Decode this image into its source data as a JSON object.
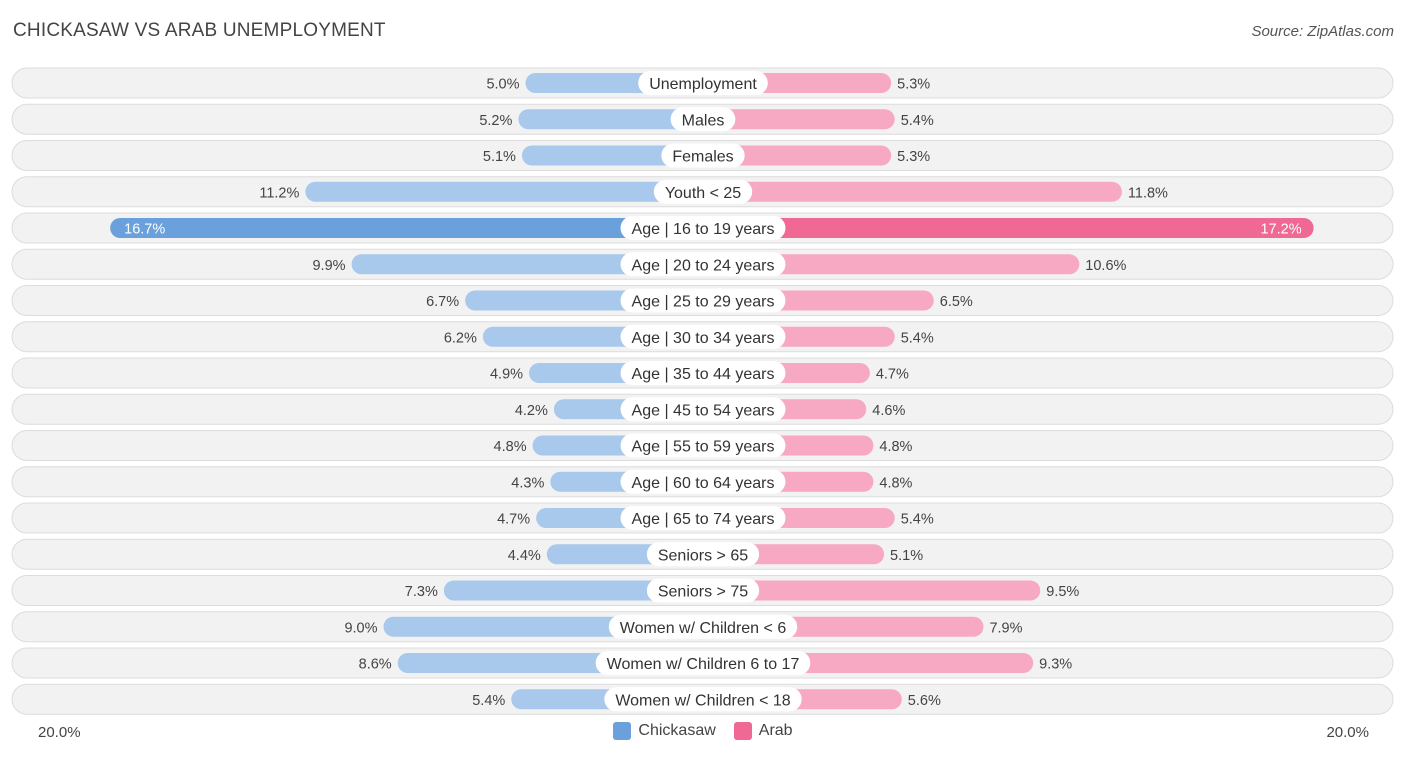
{
  "title": "CHICKASAW VS ARAB UNEMPLOYMENT",
  "source": "Source: ZipAtlas.com",
  "colors": {
    "left_light": "#a8c8ec",
    "left_strong": "#6aa0dc",
    "right_light": "#f7a8c2",
    "right_strong": "#f06894",
    "row_bg": "#f2f2f2",
    "row_border": "#dcdcdc"
  },
  "legend": [
    {
      "label": "Chickasaw",
      "color": "#6aa0dc"
    },
    {
      "label": "Arab",
      "color": "#f06894"
    }
  ],
  "axis": {
    "left_label": "20.0%",
    "right_label": "20.0%"
  },
  "chart_data": {
    "type": "bar",
    "orientation": "horizontal-diverging",
    "title": "CHICKASAW VS ARAB UNEMPLOYMENT",
    "xlim": [
      0,
      20
    ],
    "series_names": [
      "Chickasaw",
      "Arab"
    ],
    "categories": [
      "Unemployment",
      "Males",
      "Females",
      "Youth < 25",
      "Age | 16 to 19 years",
      "Age | 20 to 24 years",
      "Age | 25 to 29 years",
      "Age | 30 to 34 years",
      "Age | 35 to 44 years",
      "Age | 45 to 54 years",
      "Age | 55 to 59 years",
      "Age | 60 to 64 years",
      "Age | 65 to 74 years",
      "Seniors > 65",
      "Seniors > 75",
      "Women w/ Children < 6",
      "Women w/ Children 6 to 17",
      "Women w/ Children < 18"
    ],
    "left_values": [
      5.0,
      5.2,
      5.1,
      11.2,
      16.7,
      9.9,
      6.7,
      6.2,
      4.9,
      4.2,
      4.8,
      4.3,
      4.7,
      4.4,
      7.3,
      9.0,
      8.6,
      5.4
    ],
    "right_values": [
      5.3,
      5.4,
      5.3,
      11.8,
      17.2,
      10.6,
      6.5,
      5.4,
      4.7,
      4.6,
      4.8,
      4.8,
      5.4,
      5.1,
      9.5,
      7.9,
      9.3,
      5.6
    ],
    "left_labels": [
      "5.0%",
      "5.2%",
      "5.1%",
      "11.2%",
      "16.7%",
      "9.9%",
      "6.7%",
      "6.2%",
      "4.9%",
      "4.2%",
      "4.8%",
      "4.3%",
      "4.7%",
      "4.4%",
      "7.3%",
      "9.0%",
      "8.6%",
      "5.4%"
    ],
    "right_labels": [
      "5.3%",
      "5.4%",
      "5.3%",
      "11.8%",
      "17.2%",
      "10.6%",
      "6.5%",
      "5.4%",
      "4.7%",
      "4.6%",
      "4.8%",
      "4.8%",
      "5.4%",
      "5.1%",
      "9.5%",
      "7.9%",
      "9.3%",
      "5.6%"
    ],
    "highlight_row": "Age | 16 to 19 years"
  }
}
